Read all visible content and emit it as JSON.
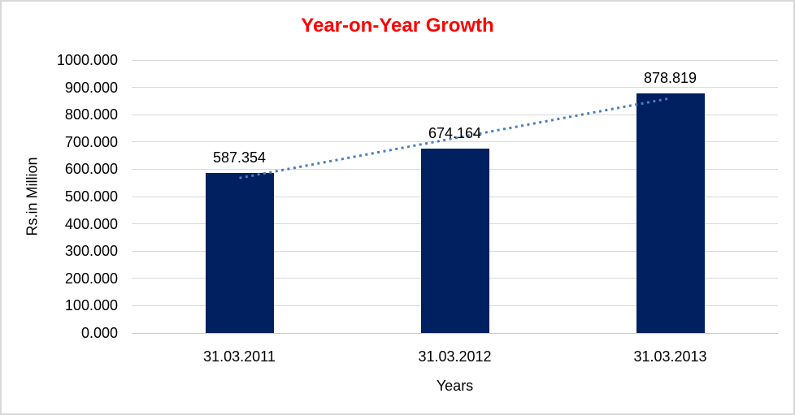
{
  "window": {
    "background": "#ffffff",
    "border_color": "#d8d8d8"
  },
  "chart_data": {
    "type": "bar",
    "title": "Year-on-Year Growth",
    "title_color": "#ff0000",
    "xlabel": "Years",
    "ylabel": "Rs.in Million",
    "categories": [
      "31.03.2011",
      "31.03.2012",
      "31.03.2013"
    ],
    "values": [
      587.354,
      674.164,
      878.819
    ],
    "data_labels": [
      "587.354",
      "674.164",
      "878.819"
    ],
    "ylim": [
      0,
      1000
    ],
    "ytick_step": 100,
    "ytick_labels": [
      "0.000",
      "100.000",
      "200.000",
      "300.000",
      "400.000",
      "500.000",
      "600.000",
      "700.000",
      "800.000",
      "900.000",
      "1000.000"
    ],
    "grid": true,
    "legend": "none",
    "bar_color": "#002060",
    "gridline_color": "#d9d9d9",
    "axis_line_color": "#c9c9c9",
    "label_color": "#000000",
    "trendline": {
      "style": "dotted",
      "color": "#4a7ebb",
      "start_value": 568,
      "end_value": 860
    }
  }
}
